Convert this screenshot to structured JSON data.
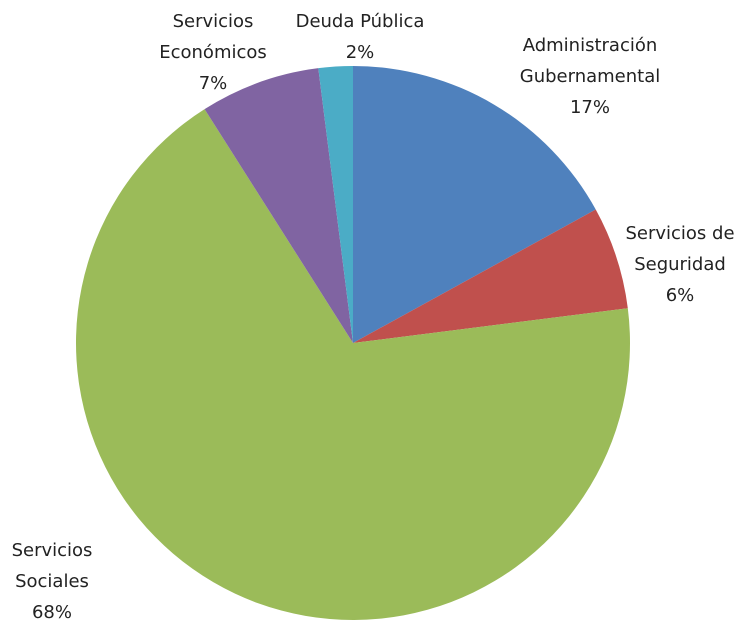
{
  "chart_data": {
    "type": "pie",
    "categories": [
      "Administración Gubernamental",
      "Servicios de Seguridad",
      "Servicios Sociales",
      "Servicios Económicos",
      "Deuda Pública"
    ],
    "values": [
      17,
      6,
      68,
      7,
      2
    ],
    "value_labels": [
      "17%",
      "6%",
      "68%",
      "7%",
      "2%"
    ],
    "colors": [
      "#4f81bd",
      "#c0504d",
      "#9bbb59",
      "#8064a2",
      "#4bacc6"
    ]
  }
}
